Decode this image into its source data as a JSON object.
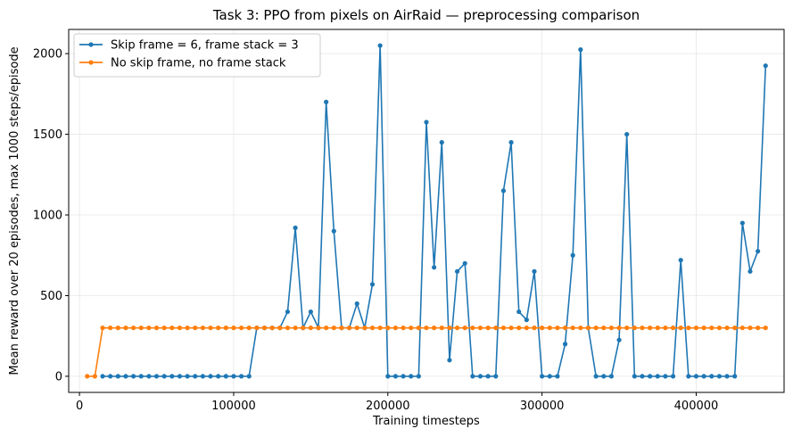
{
  "chart_data": {
    "type": "line",
    "title": "Task 3: PPO from pixels on AirRaid — preprocessing comparison",
    "xlabel": "Training timesteps",
    "ylabel": "Mean reward over 20 episodes, max 1000 steps/episode",
    "xlim": [
      -7000,
      457000
    ],
    "ylim": [
      -100,
      2150
    ],
    "xticks": [
      0,
      100000,
      200000,
      300000,
      400000
    ],
    "yticks": [
      0,
      500,
      1000,
      1500,
      2000
    ],
    "grid": true,
    "legend_position": "top-left",
    "series": [
      {
        "name": "Skip frame = 6, frame stack = 3",
        "color": "#1f77b4",
        "x": [
          15000,
          20000,
          25000,
          30000,
          35000,
          40000,
          45000,
          50000,
          55000,
          60000,
          65000,
          70000,
          75000,
          80000,
          85000,
          90000,
          95000,
          100000,
          105000,
          110000,
          115000,
          120000,
          125000,
          130000,
          135000,
          140000,
          145000,
          150000,
          155000,
          160000,
          165000,
          170000,
          175000,
          180000,
          185000,
          190000,
          195000,
          200000,
          205000,
          210000,
          215000,
          220000,
          225000,
          230000,
          235000,
          240000,
          245000,
          250000,
          255000,
          260000,
          265000,
          270000,
          275000,
          280000,
          285000,
          290000,
          295000,
          300000,
          305000,
          310000,
          315000,
          320000,
          325000,
          330000,
          335000,
          340000,
          345000,
          350000,
          355000,
          360000,
          365000,
          370000,
          375000,
          380000,
          385000,
          390000,
          395000,
          400000,
          405000,
          410000,
          415000,
          420000,
          425000,
          430000,
          435000,
          440000,
          445000
        ],
        "y": [
          0,
          0,
          0,
          0,
          0,
          0,
          0,
          0,
          0,
          0,
          0,
          0,
          0,
          0,
          0,
          0,
          0,
          0,
          0,
          0,
          300,
          300,
          300,
          300,
          400,
          920,
          300,
          400,
          300,
          1700,
          900,
          300,
          300,
          450,
          300,
          570,
          2050,
          0,
          0,
          0,
          0,
          0,
          1575,
          675,
          1450,
          100,
          650,
          700,
          0,
          0,
          0,
          0,
          1150,
          1450,
          400,
          350,
          650,
          0,
          0,
          0,
          200,
          750,
          2025,
          300,
          0,
          0,
          0,
          225,
          1500,
          0,
          0,
          0,
          0,
          0,
          0,
          720,
          0,
          0,
          0,
          0,
          0,
          0,
          0,
          950,
          650,
          775,
          1925
        ]
      },
      {
        "name": "No skip frame, no frame stack",
        "color": "#ff7f0e",
        "x": [
          5000,
          10000,
          15000,
          20000,
          25000,
          30000,
          35000,
          40000,
          45000,
          50000,
          55000,
          60000,
          65000,
          70000,
          75000,
          80000,
          85000,
          90000,
          95000,
          100000,
          105000,
          110000,
          115000,
          120000,
          125000,
          130000,
          135000,
          140000,
          145000,
          150000,
          155000,
          160000,
          165000,
          170000,
          175000,
          180000,
          185000,
          190000,
          195000,
          200000,
          205000,
          210000,
          215000,
          220000,
          225000,
          230000,
          235000,
          240000,
          245000,
          250000,
          255000,
          260000,
          265000,
          270000,
          275000,
          280000,
          285000,
          290000,
          295000,
          300000,
          305000,
          310000,
          315000,
          320000,
          325000,
          330000,
          335000,
          340000,
          345000,
          350000,
          355000,
          360000,
          365000,
          370000,
          375000,
          380000,
          385000,
          390000,
          395000,
          400000,
          405000,
          410000,
          415000,
          420000,
          425000,
          430000,
          435000,
          440000,
          445000
        ],
        "y": [
          0,
          0,
          300,
          300,
          300,
          300,
          300,
          300,
          300,
          300,
          300,
          300,
          300,
          300,
          300,
          300,
          300,
          300,
          300,
          300,
          300,
          300,
          300,
          300,
          300,
          300,
          300,
          300,
          300,
          300,
          300,
          300,
          300,
          300,
          300,
          300,
          300,
          300,
          300,
          300,
          300,
          300,
          300,
          300,
          300,
          300,
          300,
          300,
          300,
          300,
          300,
          300,
          300,
          300,
          300,
          300,
          300,
          300,
          300,
          300,
          300,
          300,
          300,
          300,
          300,
          300,
          300,
          300,
          300,
          300,
          300,
          300,
          300,
          300,
          300,
          300,
          300,
          300,
          300,
          300,
          300,
          300,
          300,
          300,
          300,
          300,
          300,
          300,
          300
        ]
      }
    ]
  }
}
